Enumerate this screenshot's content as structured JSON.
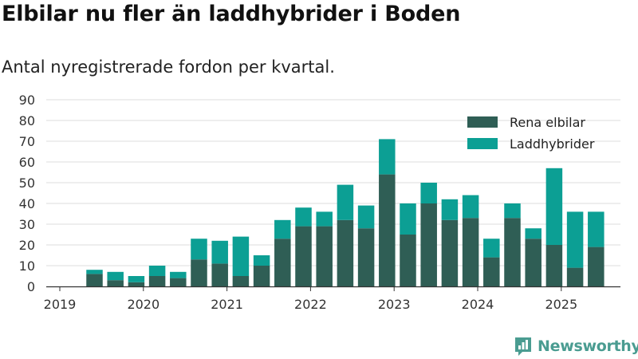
{
  "header": {
    "title": "Elbilar nu fler än laddhybrider i Boden",
    "subtitle": "Antal nyregistrerade fordon per kvartal."
  },
  "brand": {
    "name": "Newsworthy",
    "icon": "newsworthy-logo-icon",
    "color": "#4a9c91"
  },
  "chart_data": {
    "type": "bar",
    "stacked": true,
    "categories": [
      "2019-Q1",
      "2019-Q2",
      "2019-Q3",
      "2019-Q4",
      "2020-Q1",
      "2020-Q2",
      "2020-Q3",
      "2020-Q4",
      "2021-Q1",
      "2021-Q2",
      "2021-Q3",
      "2021-Q4",
      "2022-Q1",
      "2022-Q2",
      "2022-Q3",
      "2022-Q4",
      "2023-Q1",
      "2023-Q2",
      "2023-Q3",
      "2023-Q4",
      "2024-Q1",
      "2024-Q2",
      "2024-Q3",
      "2024-Q4",
      "2025-Q1",
      "2025-Q2"
    ],
    "series": [
      {
        "name": "Rena elbilar",
        "color": "#2f5e55",
        "values": [
          0,
          6,
          3,
          2,
          5,
          4,
          13,
          11,
          5,
          10,
          23,
          29,
          29,
          32,
          28,
          54,
          25,
          40,
          32,
          33,
          14,
          33,
          23,
          20,
          9,
          19
        ]
      },
      {
        "name": "Laddhybrider",
        "color": "#0c9f94",
        "values": [
          0,
          2,
          4,
          3,
          5,
          3,
          10,
          11,
          19,
          5,
          9,
          9,
          7,
          17,
          11,
          17,
          15,
          10,
          10,
          11,
          9,
          7,
          5,
          37,
          27,
          17
        ]
      }
    ],
    "x_tick_labels": [
      "2019",
      "2020",
      "2021",
      "2022",
      "2023",
      "2024",
      "2025"
    ],
    "y_ticks": [
      0,
      10,
      20,
      30,
      40,
      50,
      60,
      70,
      80,
      90
    ],
    "ylim": [
      0,
      90
    ],
    "xlabel": "",
    "ylabel": "",
    "grid": true,
    "legend": "top-right"
  }
}
